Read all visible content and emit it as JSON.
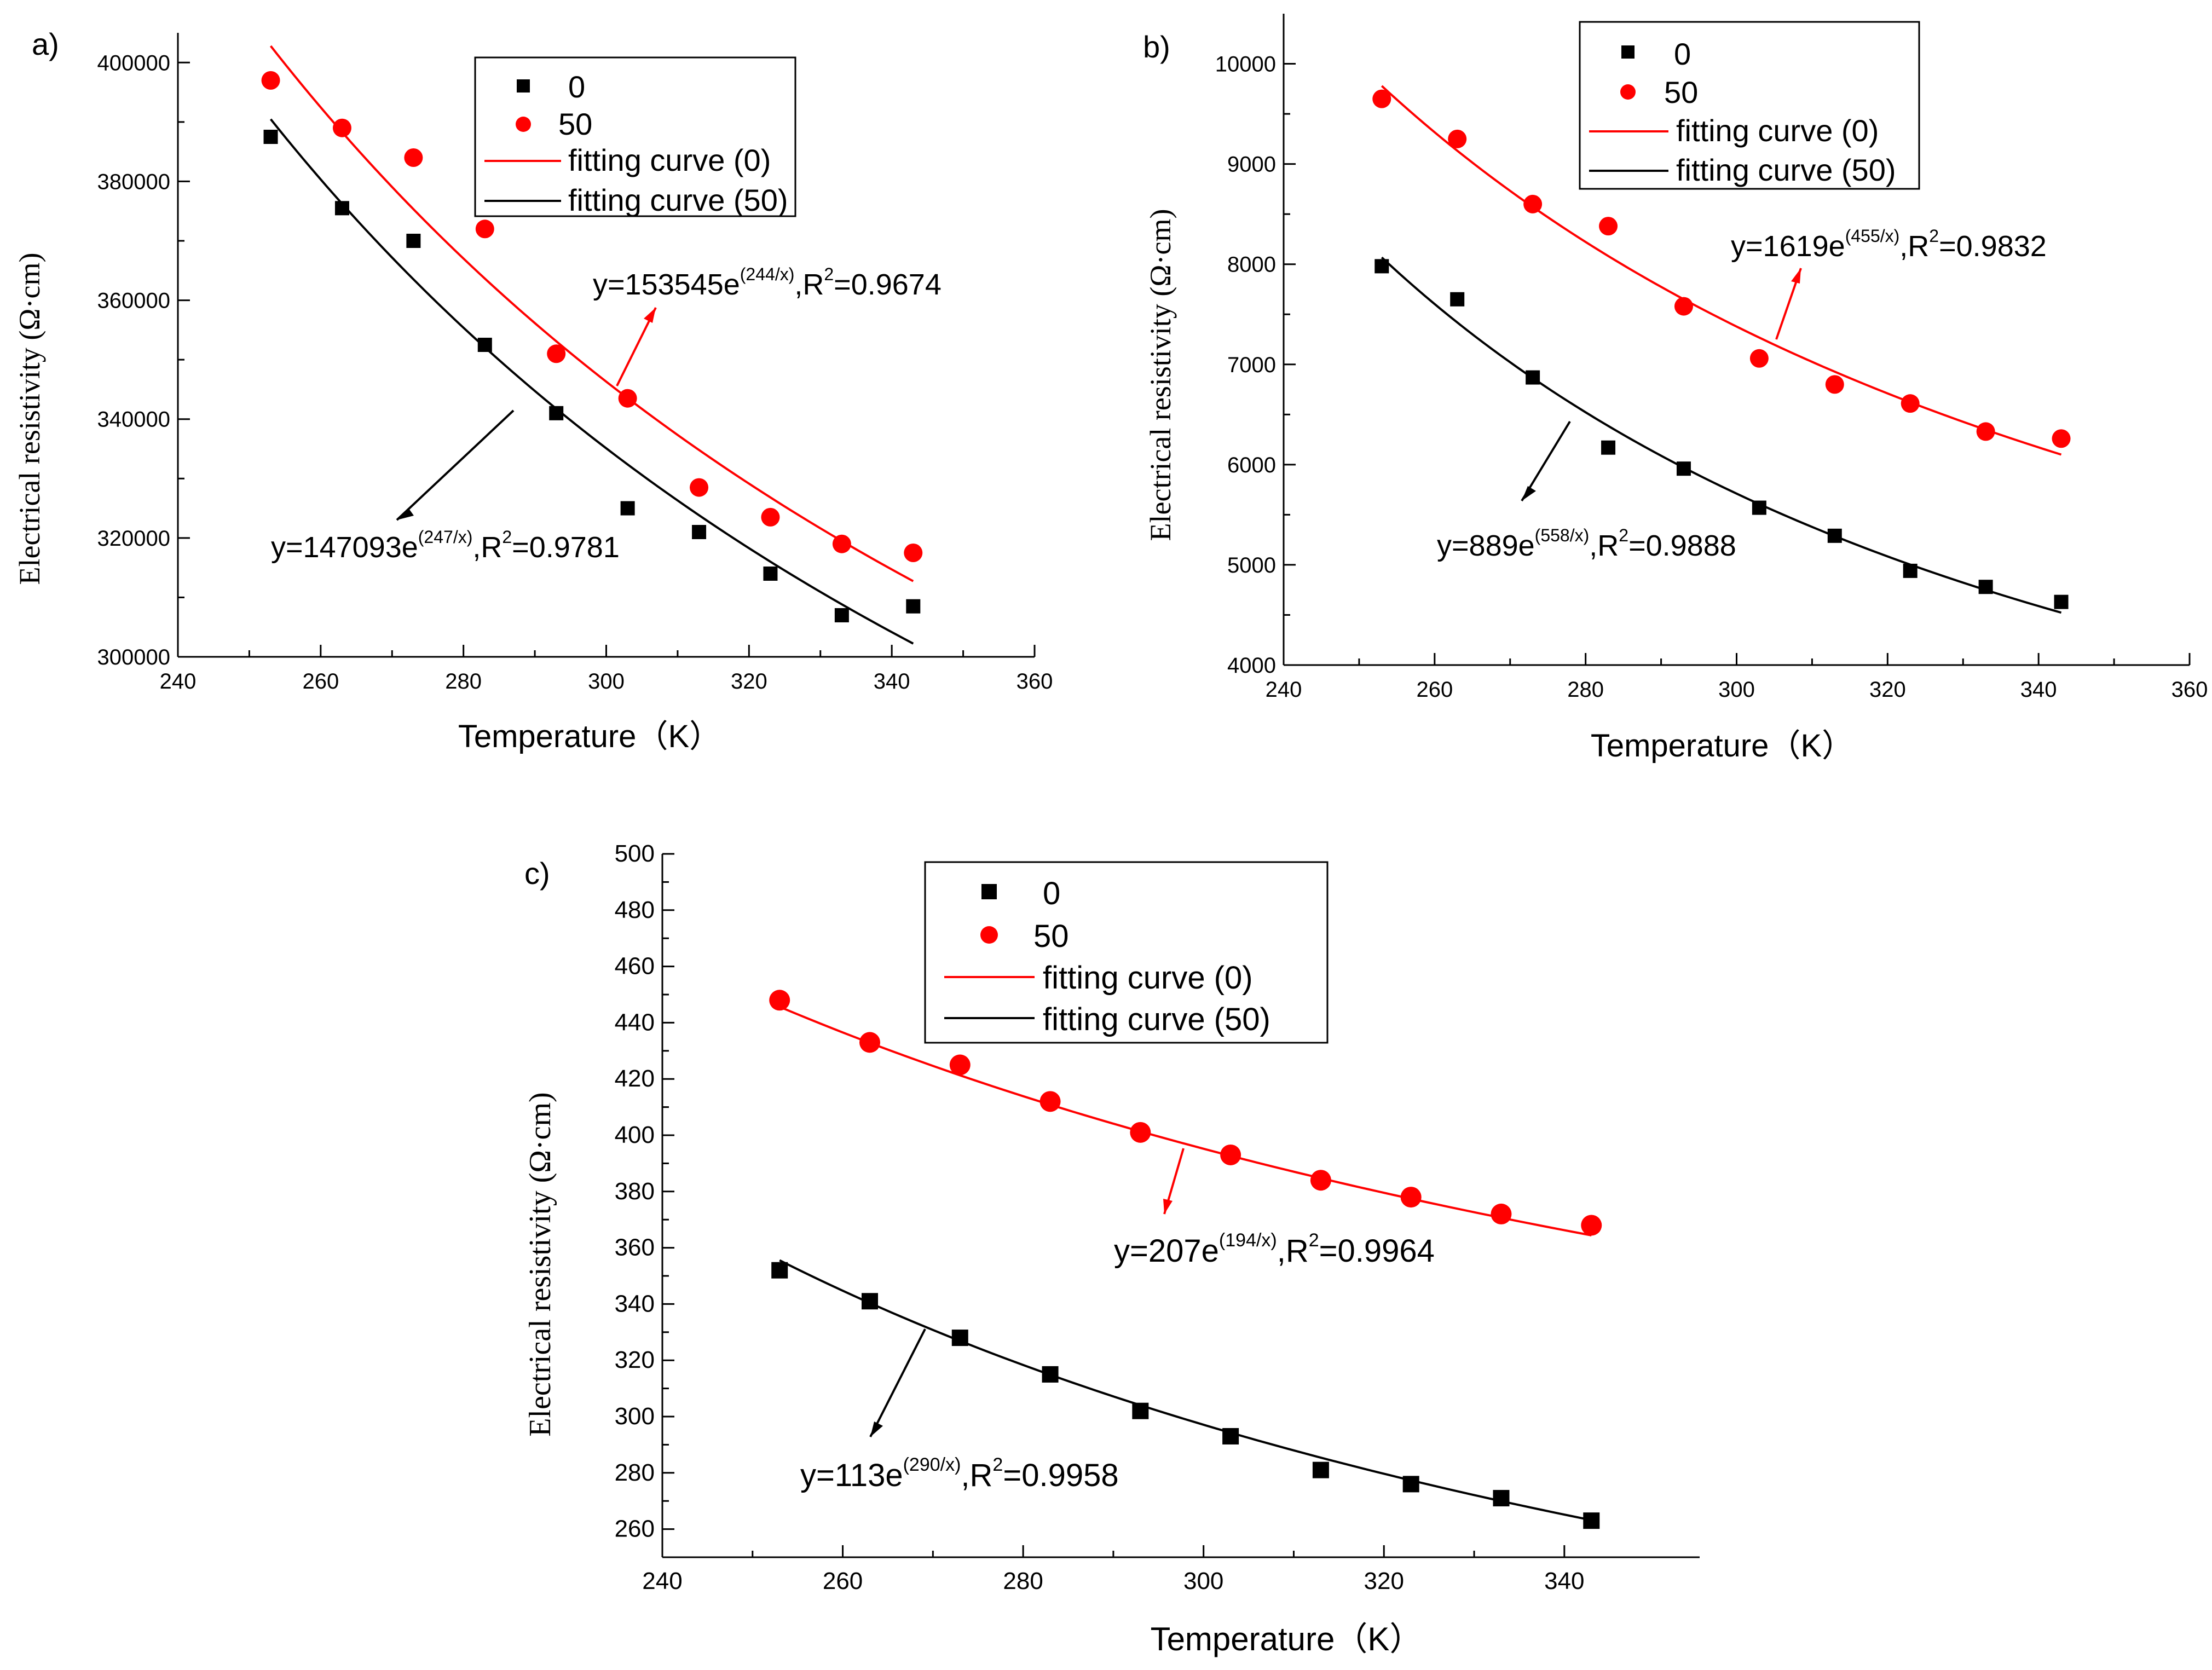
{
  "chart_data": [
    {
      "panel_label": "a)",
      "type": "scatter",
      "xlabel": "Temperature（K）",
      "ylabel": "Electrical resistivity (Ω·cm)",
      "xlim": [
        240,
        360
      ],
      "ylim": [
        300000,
        405000
      ],
      "xticks": [
        240,
        260,
        280,
        300,
        320,
        340,
        360
      ],
      "yticks": [
        300000,
        320000,
        340000,
        360000,
        380000,
        400000
      ],
      "legend": {
        "position": "top-right",
        "entries": [
          {
            "label": "0",
            "marker": "square",
            "color": "#000000"
          },
          {
            "label": "50",
            "marker": "circle",
            "color": "#ff0000"
          },
          {
            "label": "fitting curve (0)",
            "marker": "line",
            "color": "#ff0000"
          },
          {
            "label": "fitting curve (50)",
            "marker": "line",
            "color": "#000000"
          }
        ]
      },
      "series": [
        {
          "name": "0",
          "marker": "square",
          "color": "#000000",
          "x": [
            253,
            263,
            273,
            283,
            293,
            303,
            313,
            323,
            333,
            343
          ],
          "y": [
            387500,
            375500,
            370000,
            352500,
            341000,
            325000,
            321000,
            314000,
            307000,
            308500
          ]
        },
        {
          "name": "50",
          "marker": "circle",
          "color": "#ff0000",
          "x": [
            253,
            263,
            273,
            283,
            293,
            303,
            313,
            323,
            333,
            343
          ],
          "y": [
            397000,
            389000,
            384000,
            372000,
            351000,
            343500,
            328500,
            323500,
            319000,
            317500
          ]
        }
      ],
      "fits": [
        {
          "name": "fitting curve (0)",
          "color": "#ff0000",
          "A": 153545,
          "B": 244,
          "x_range": [
            253,
            343
          ]
        },
        {
          "name": "fitting curve (50)",
          "color": "#000000",
          "A": 147093,
          "B": 247,
          "x_range": [
            253,
            343
          ]
        }
      ],
      "annotations": [
        {
          "prefix": "y=153545e",
          "exp": "(244/x)",
          "mid": ",R",
          "sup2": "2",
          "suffix": "=0.9674",
          "color": "#ff0000",
          "anchor_x": 301.5,
          "anchor_y": 347000
        },
        {
          "prefix": "y=147093e",
          "exp": "(247/x)",
          "mid": ",R",
          "sup2": "2",
          "suffix": "=0.9781",
          "color": "#000000",
          "anchor_x": 287,
          "anchor_y": 343000
        }
      ]
    },
    {
      "panel_label": "b)",
      "type": "scatter",
      "xlabel": "Temperature（K）",
      "ylabel": "Electrical resistivity (Ω·cm)",
      "xlim": [
        240,
        360
      ],
      "ylim": [
        4000,
        10500
      ],
      "xticks": [
        240,
        260,
        280,
        300,
        320,
        340,
        360
      ],
      "yticks": [
        4000,
        5000,
        6000,
        7000,
        8000,
        9000,
        10000
      ],
      "legend": {
        "position": "top-right",
        "entries": [
          {
            "label": "0",
            "marker": "square",
            "color": "#000000"
          },
          {
            "label": "50",
            "marker": "circle",
            "color": "#ff0000"
          },
          {
            "label": "fitting curve (0)",
            "marker": "line",
            "color": "#ff0000"
          },
          {
            "label": "fitting curve (50)",
            "marker": "line",
            "color": "#000000"
          }
        ]
      },
      "series": [
        {
          "name": "0",
          "marker": "square",
          "color": "#000000",
          "x": [
            253,
            263,
            273,
            283,
            293,
            303,
            313,
            323,
            333,
            343
          ],
          "y": [
            7980,
            7650,
            6870,
            6170,
            5960,
            5570,
            5290,
            4940,
            4780,
            4630
          ]
        },
        {
          "name": "50",
          "marker": "circle",
          "color": "#ff0000",
          "x": [
            253,
            263,
            273,
            283,
            293,
            303,
            313,
            323,
            333,
            343
          ],
          "y": [
            9650,
            9250,
            8600,
            8380,
            7580,
            7060,
            6800,
            6610,
            6330,
            6260
          ]
        }
      ],
      "fits": [
        {
          "name": "fitting curve (0)",
          "color": "#ff0000",
          "A": 1619,
          "B": 455,
          "x_range": [
            253,
            343
          ]
        },
        {
          "name": "fitting curve (50)",
          "color": "#000000",
          "A": 889,
          "B": 558,
          "x_range": [
            253,
            343
          ]
        }
      ],
      "annotations": [
        {
          "prefix": "y=1619e",
          "exp": "(455/x)",
          "mid": ",R",
          "sup2": "2",
          "suffix": "=0.9832",
          "color": "#ff0000",
          "anchor_x": 303,
          "anchor_y": 7190
        },
        {
          "prefix": "y=889e",
          "exp": "(558/x)",
          "mid": ",R",
          "sup2": "2",
          "suffix": "=0.9888",
          "color": "#000000",
          "anchor_x": 277,
          "anchor_y": 6430
        }
      ]
    },
    {
      "panel_label": "c)",
      "type": "scatter",
      "xlabel": "Temperature（K）",
      "ylabel": "Electrical resistivity (Ω·cm)",
      "xlim": [
        240,
        355
      ],
      "ylim": [
        250,
        500
      ],
      "xticks": [
        240,
        260,
        280,
        300,
        320,
        340
      ],
      "yticks": [
        260,
        280,
        300,
        320,
        340,
        360,
        380,
        400,
        420,
        440,
        460,
        480,
        500
      ],
      "legend": {
        "position": "top-center",
        "entries": [
          {
            "label": "0",
            "marker": "square",
            "color": "#000000"
          },
          {
            "label": "50",
            "marker": "circle",
            "color": "#ff0000"
          },
          {
            "label": "fitting curve (0)",
            "marker": "line",
            "color": "#ff0000"
          },
          {
            "label": "fitting curve (50)",
            "marker": "line",
            "color": "#000000"
          }
        ]
      },
      "series": [
        {
          "name": "0",
          "marker": "square",
          "color": "#000000",
          "x": [
            253,
            263,
            273,
            283,
            293,
            303,
            313,
            323,
            333,
            343
          ],
          "y": [
            352,
            341,
            328,
            315,
            302,
            293,
            281,
            276,
            271,
            263
          ]
        },
        {
          "name": "50",
          "marker": "circle",
          "color": "#ff0000",
          "x": [
            253,
            263,
            273,
            283,
            293,
            303,
            313,
            323,
            333,
            343
          ],
          "y": [
            448,
            433,
            425,
            412,
            401,
            393,
            384,
            378,
            372,
            368
          ]
        }
      ],
      "fits": [
        {
          "name": "fitting curve (0)",
          "color": "#ff0000",
          "A": 207,
          "B": 194,
          "x_range": [
            253,
            343
          ]
        },
        {
          "name": "fitting curve (50)",
          "color": "#000000",
          "A": 113,
          "B": 290,
          "x_range": [
            253,
            343
          ]
        }
      ],
      "annotations": [
        {
          "prefix": "y=207e",
          "exp": "(194/x)",
          "mid": ",R",
          "sup2": "2",
          "suffix": "=0.9964",
          "color": "#ff0000",
          "anchor_x": 298,
          "anchor_y": 394
        },
        {
          "prefix": "y=113e",
          "exp": "(290/x)",
          "mid": ",R",
          "sup2": "2",
          "suffix": "=0.9958",
          "color": "#000000",
          "anchor_x": 268,
          "anchor_y": 330
        }
      ]
    }
  ]
}
